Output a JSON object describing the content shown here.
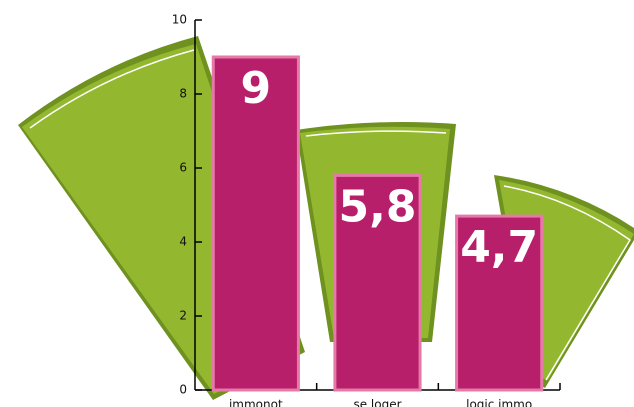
{
  "chart_data": {
    "type": "bar",
    "categories": [
      "immonot",
      "se loger",
      "logic immo"
    ],
    "values": [
      9,
      5.8,
      4.7
    ],
    "value_labels": [
      "9",
      "5,8",
      "4,7"
    ],
    "color": "#b81f6b",
    "ylim": [
      0,
      10
    ],
    "yticks": [
      0,
      2,
      4,
      6,
      8,
      10
    ]
  }
}
